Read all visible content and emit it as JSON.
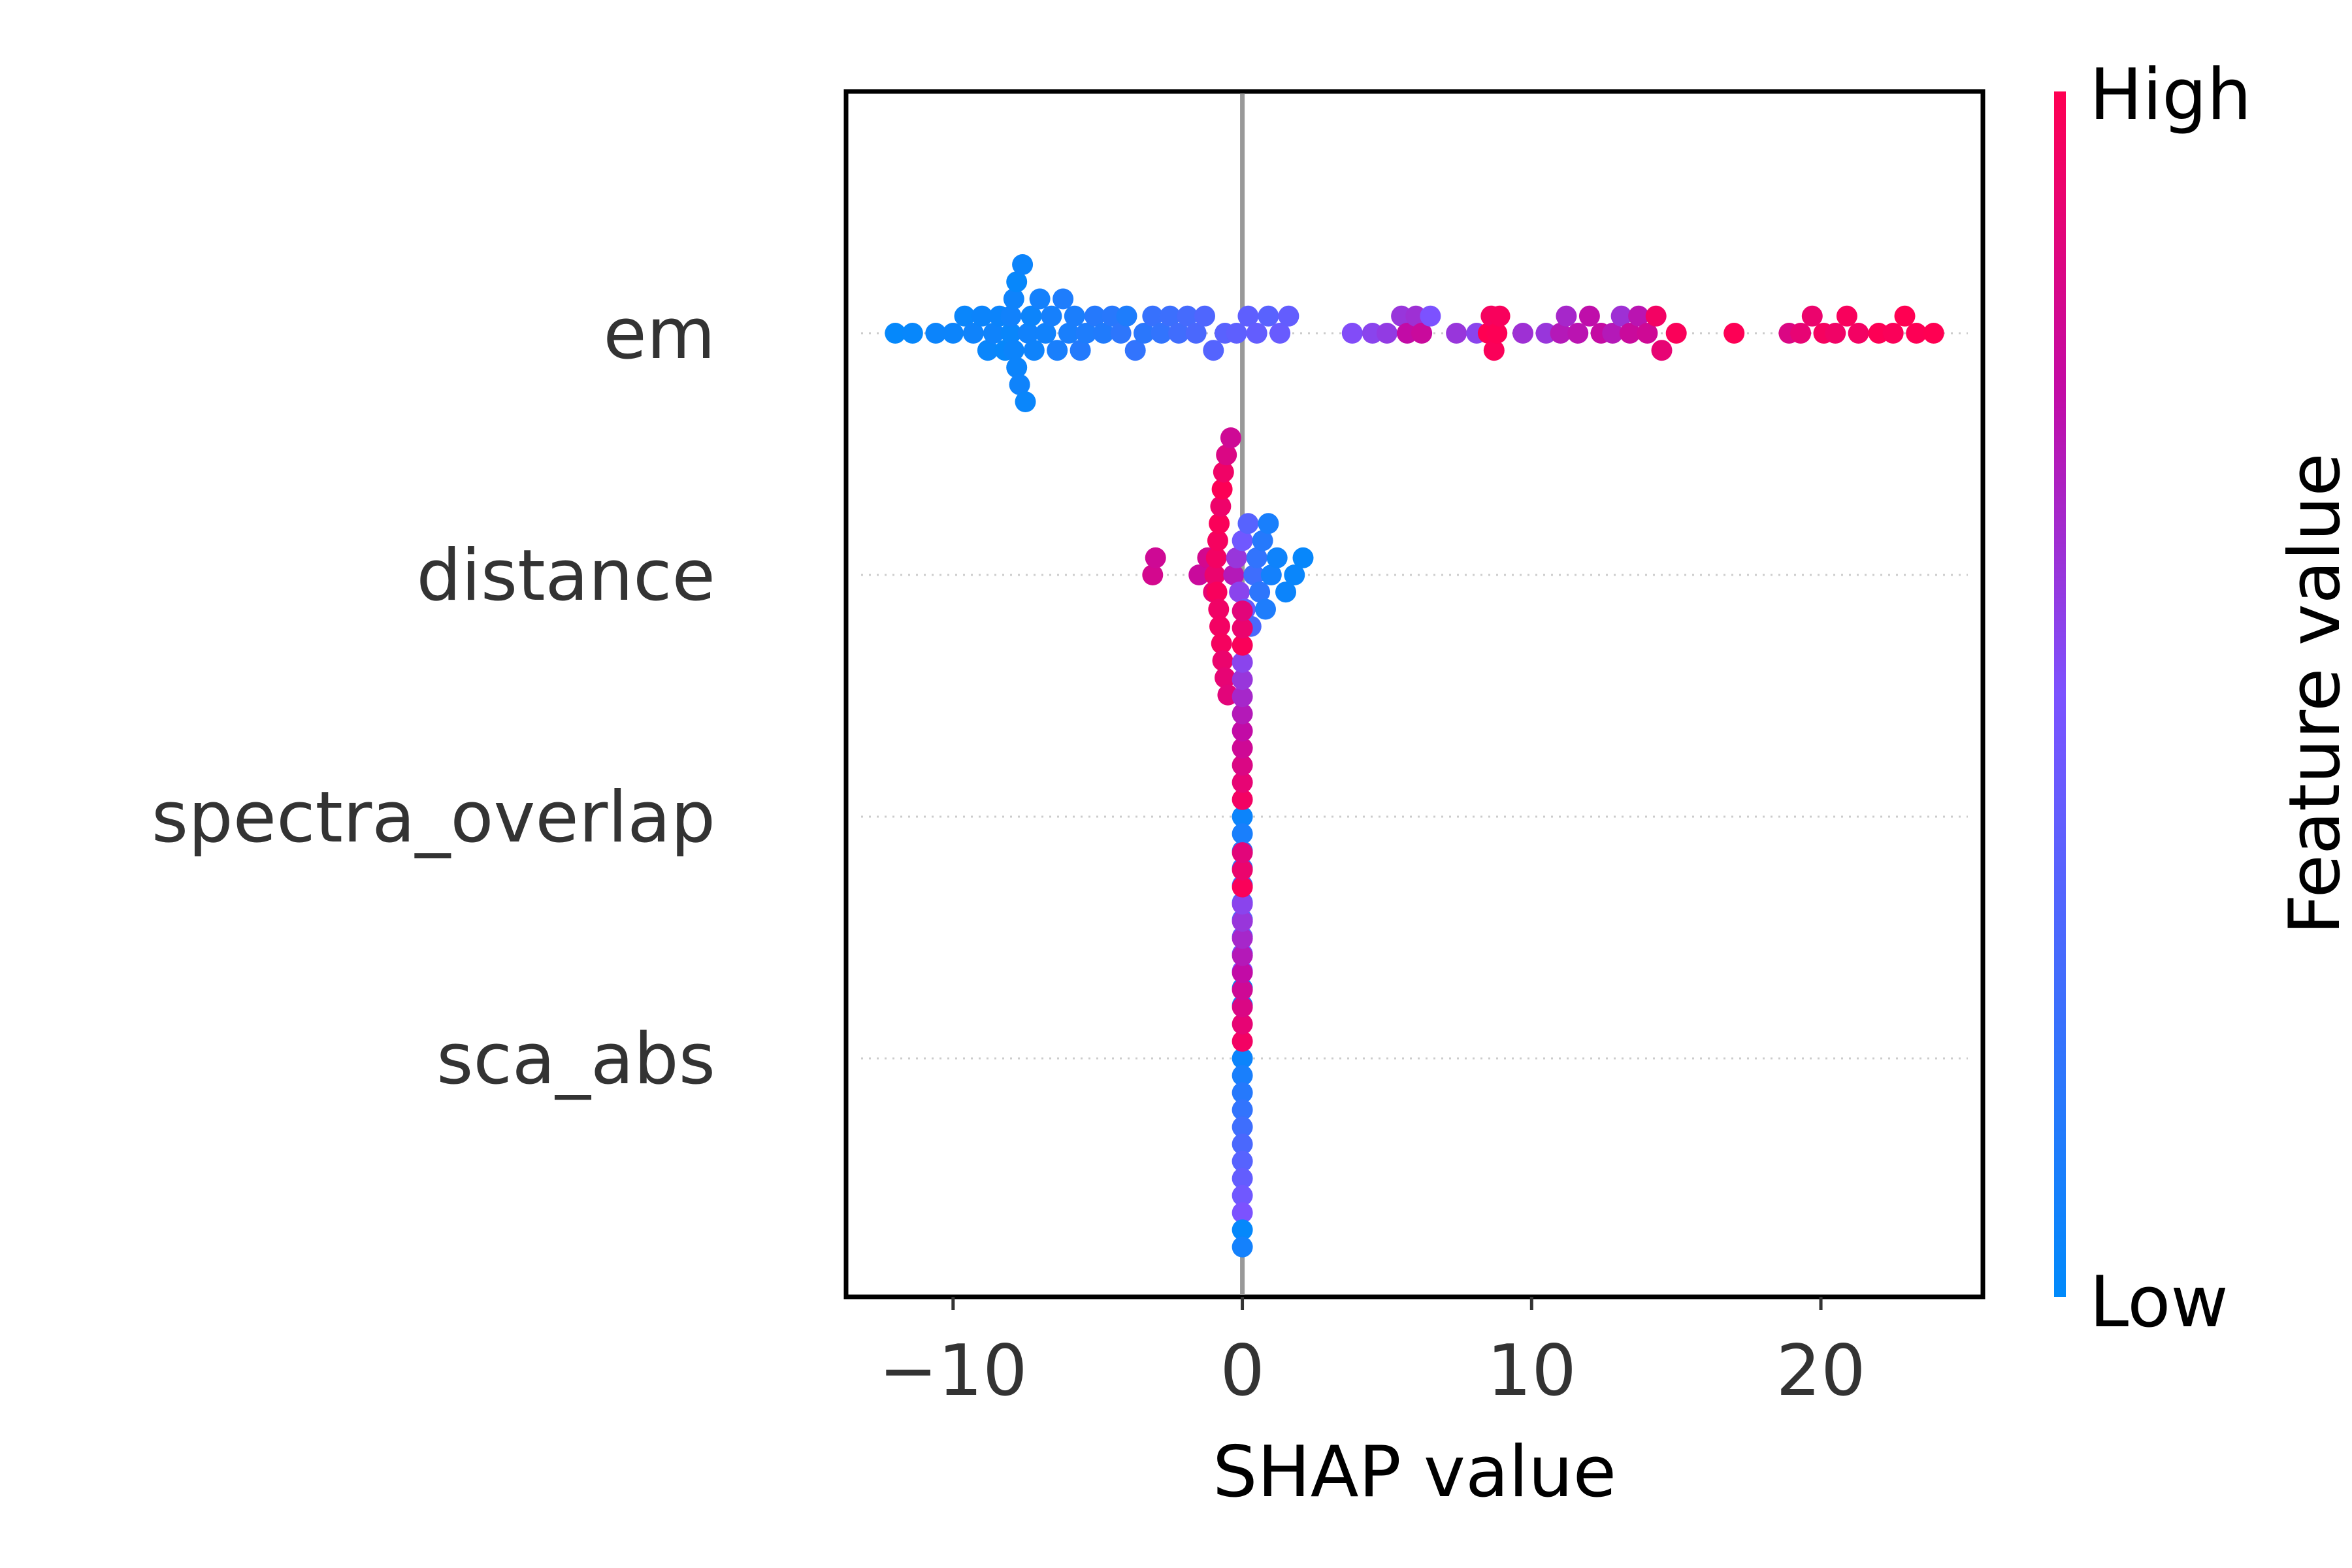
{
  "chart_data": {
    "type": "scatter",
    "subtype": "shap-beeswarm",
    "xlabel": "SHAP value",
    "xlim": [
      -13.7,
      25.6
    ],
    "xticks": [
      -10,
      0,
      10,
      20
    ],
    "xtick_labels": [
      "−10",
      "0",
      "10",
      "20"
    ],
    "grid": false,
    "zero_line": 0,
    "features": [
      "em",
      "distance",
      "spectra_overlap",
      "sca_abs"
    ],
    "colorbar": {
      "label": "Feature value",
      "high_label": "High",
      "low_label": "Low",
      "low_color": "#008afb",
      "high_color": "#ff0052"
    },
    "series": [
      {
        "feature": "em",
        "points": [
          {
            "x": -12.0,
            "v": 0.02
          },
          {
            "x": -11.4,
            "v": 0.03
          },
          {
            "x": -10.6,
            "v": 0.05
          },
          {
            "x": -10.0,
            "v": 0.05
          },
          {
            "x": -9.6,
            "v": 0.04
          },
          {
            "x": -9.3,
            "v": 0.06
          },
          {
            "x": -9.0,
            "v": 0.05
          },
          {
            "x": -8.8,
            "v": 0.04
          },
          {
            "x": -8.6,
            "v": 0.06
          },
          {
            "x": -8.4,
            "v": 0.05
          },
          {
            "x": -8.2,
            "v": 0.03
          },
          {
            "x": -8.0,
            "v": 0.04
          },
          {
            "x": -8.0,
            "v": 0.07
          },
          {
            "x": -7.9,
            "v": 0.05
          },
          {
            "x": -7.9,
            "v": 0.06
          },
          {
            "x": -7.8,
            "v": 0.05
          },
          {
            "x": -7.8,
            "v": 0.03
          },
          {
            "x": -7.7,
            "v": 0.06
          },
          {
            "x": -7.6,
            "v": 0.05
          },
          {
            "x": -7.5,
            "v": 0.04
          },
          {
            "x": -7.4,
            "v": 0.07
          },
          {
            "x": -7.3,
            "v": 0.05
          },
          {
            "x": -7.2,
            "v": 0.06
          },
          {
            "x": -7.0,
            "v": 0.08
          },
          {
            "x": -6.8,
            "v": 0.07
          },
          {
            "x": -6.6,
            "v": 0.09
          },
          {
            "x": -6.4,
            "v": 0.1
          },
          {
            "x": -6.2,
            "v": 0.12
          },
          {
            "x": -6.0,
            "v": 0.1
          },
          {
            "x": -5.8,
            "v": 0.11
          },
          {
            "x": -5.6,
            "v": 0.14
          },
          {
            "x": -5.4,
            "v": 0.12
          },
          {
            "x": -5.1,
            "v": 0.15
          },
          {
            "x": -4.8,
            "v": 0.13
          },
          {
            "x": -4.5,
            "v": 0.16
          },
          {
            "x": -4.2,
            "v": 0.18
          },
          {
            "x": -4.0,
            "v": 0.12
          },
          {
            "x": -3.7,
            "v": 0.2
          },
          {
            "x": -3.4,
            "v": 0.17
          },
          {
            "x": -3.1,
            "v": 0.22
          },
          {
            "x": -2.8,
            "v": 0.2
          },
          {
            "x": -2.5,
            "v": 0.24
          },
          {
            "x": -2.2,
            "v": 0.26
          },
          {
            "x": -1.9,
            "v": 0.28
          },
          {
            "x": -1.6,
            "v": 0.3
          },
          {
            "x": -1.3,
            "v": 0.32
          },
          {
            "x": -1.0,
            "v": 0.34
          },
          {
            "x": -0.6,
            "v": 0.36
          },
          {
            "x": -0.2,
            "v": 0.38
          },
          {
            "x": 0.2,
            "v": 0.38
          },
          {
            "x": 0.5,
            "v": 0.4
          },
          {
            "x": 0.9,
            "v": 0.36
          },
          {
            "x": 1.3,
            "v": 0.42
          },
          {
            "x": 1.6,
            "v": 0.4
          },
          {
            "x": 3.8,
            "v": 0.52
          },
          {
            "x": 4.5,
            "v": 0.55
          },
          {
            "x": 5.0,
            "v": 0.58
          },
          {
            "x": 5.5,
            "v": 0.6
          },
          {
            "x": 5.7,
            "v": 0.75
          },
          {
            "x": 6.0,
            "v": 0.62
          },
          {
            "x": 6.2,
            "v": 0.78
          },
          {
            "x": 6.5,
            "v": 0.5
          },
          {
            "x": 7.4,
            "v": 0.6
          },
          {
            "x": 8.1,
            "v": 0.55
          },
          {
            "x": 8.5,
            "v": 1.0
          },
          {
            "x": 8.6,
            "v": 0.96
          },
          {
            "x": 8.7,
            "v": 0.98
          },
          {
            "x": 8.8,
            "v": 0.99
          },
          {
            "x": 8.9,
            "v": 0.97
          },
          {
            "x": 9.7,
            "v": 0.62
          },
          {
            "x": 10.5,
            "v": 0.6
          },
          {
            "x": 11.0,
            "v": 0.7
          },
          {
            "x": 11.2,
            "v": 0.65
          },
          {
            "x": 11.6,
            "v": 0.72
          },
          {
            "x": 12.0,
            "v": 0.74
          },
          {
            "x": 12.4,
            "v": 0.76
          },
          {
            "x": 12.8,
            "v": 0.7
          },
          {
            "x": 13.1,
            "v": 0.62
          },
          {
            "x": 13.4,
            "v": 0.78
          },
          {
            "x": 13.7,
            "v": 0.72
          },
          {
            "x": 14.0,
            "v": 0.8
          },
          {
            "x": 14.3,
            "v": 0.95
          },
          {
            "x": 14.5,
            "v": 0.9
          },
          {
            "x": 15.0,
            "v": 0.98
          },
          {
            "x": 17.0,
            "v": 0.99
          },
          {
            "x": 18.9,
            "v": 0.85
          },
          {
            "x": 19.3,
            "v": 0.9
          },
          {
            "x": 19.7,
            "v": 0.92
          },
          {
            "x": 20.1,
            "v": 0.96
          },
          {
            "x": 20.5,
            "v": 0.94
          },
          {
            "x": 20.9,
            "v": 0.97
          },
          {
            "x": 21.3,
            "v": 0.95
          },
          {
            "x": 22.0,
            "v": 0.99
          },
          {
            "x": 22.5,
            "v": 0.98
          },
          {
            "x": 22.9,
            "v": 1.0
          },
          {
            "x": 23.3,
            "v": 0.99
          },
          {
            "x": 23.9,
            "v": 1.0
          }
        ]
      },
      {
        "feature": "distance",
        "points": [
          {
            "x": -3.1,
            "v": 0.82
          },
          {
            "x": -3.0,
            "v": 0.8
          },
          {
            "x": -1.5,
            "v": 0.78
          },
          {
            "x": -1.2,
            "v": 0.82
          },
          {
            "x": -1.0,
            "v": 0.9
          },
          {
            "x": -0.95,
            "v": 0.92
          },
          {
            "x": -0.9,
            "v": 0.95
          },
          {
            "x": -0.88,
            "v": 0.97
          },
          {
            "x": -0.85,
            "v": 0.96
          },
          {
            "x": -0.82,
            "v": 0.94
          },
          {
            "x": -0.8,
            "v": 0.98
          },
          {
            "x": -0.78,
            "v": 0.95
          },
          {
            "x": -0.75,
            "v": 0.93
          },
          {
            "x": -0.72,
            "v": 0.96
          },
          {
            "x": -0.7,
            "v": 0.99
          },
          {
            "x": -0.68,
            "v": 0.92
          },
          {
            "x": -0.65,
            "v": 0.94
          },
          {
            "x": -0.6,
            "v": 0.9
          },
          {
            "x": -0.55,
            "v": 0.85
          },
          {
            "x": -0.5,
            "v": 0.88
          },
          {
            "x": -0.4,
            "v": 0.8
          },
          {
            "x": -0.3,
            "v": 0.7
          },
          {
            "x": -0.2,
            "v": 0.6
          },
          {
            "x": -0.1,
            "v": 0.55
          },
          {
            "x": 0.0,
            "v": 0.45
          },
          {
            "x": 0.1,
            "v": 0.4
          },
          {
            "x": 0.2,
            "v": 0.35
          },
          {
            "x": 0.3,
            "v": 0.3
          },
          {
            "x": 0.4,
            "v": 0.25
          },
          {
            "x": 0.5,
            "v": 0.2
          },
          {
            "x": 0.6,
            "v": 0.18
          },
          {
            "x": 0.7,
            "v": 0.15
          },
          {
            "x": 0.8,
            "v": 0.12
          },
          {
            "x": 0.9,
            "v": 0.1
          },
          {
            "x": 1.0,
            "v": 0.08
          },
          {
            "x": 1.2,
            "v": 0.06
          },
          {
            "x": 1.5,
            "v": 0.05
          },
          {
            "x": 1.8,
            "v": 0.04
          },
          {
            "x": 2.1,
            "v": 0.03
          }
        ]
      },
      {
        "feature": "spectra_overlap",
        "points": [
          {
            "x": 0.0,
            "v": 0.05
          },
          {
            "x": 0.0,
            "v": 0.95
          },
          {
            "x": 0.0,
            "v": 0.1
          },
          {
            "x": 0.0,
            "v": 0.9
          },
          {
            "x": 0.0,
            "v": 0.15
          },
          {
            "x": 0.0,
            "v": 0.85
          },
          {
            "x": 0.0,
            "v": 0.2
          },
          {
            "x": 0.0,
            "v": 0.8
          },
          {
            "x": 0.0,
            "v": 0.25
          },
          {
            "x": 0.0,
            "v": 0.75
          },
          {
            "x": 0.0,
            "v": 0.3
          },
          {
            "x": 0.0,
            "v": 0.7
          },
          {
            "x": 0.0,
            "v": 0.35
          },
          {
            "x": 0.0,
            "v": 0.65
          },
          {
            "x": 0.0,
            "v": 0.4
          },
          {
            "x": 0.0,
            "v": 0.6
          },
          {
            "x": 0.0,
            "v": 0.45
          },
          {
            "x": 0.0,
            "v": 0.55
          },
          {
            "x": 0.0,
            "v": 0.5
          },
          {
            "x": 0.0,
            "v": 0.98
          },
          {
            "x": 0.0,
            "v": 0.02
          },
          {
            "x": 0.0,
            "v": 0.92
          },
          {
            "x": 0.0,
            "v": 0.08
          },
          {
            "x": 0.0,
            "v": 0.88
          }
        ]
      },
      {
        "feature": "sca_abs",
        "points": [
          {
            "x": 0.0,
            "v": 0.05
          },
          {
            "x": 0.0,
            "v": 0.95
          },
          {
            "x": 0.0,
            "v": 0.1
          },
          {
            "x": 0.0,
            "v": 0.9
          },
          {
            "x": 0.0,
            "v": 0.15
          },
          {
            "x": 0.0,
            "v": 0.85
          },
          {
            "x": 0.0,
            "v": 0.2
          },
          {
            "x": 0.0,
            "v": 0.8
          },
          {
            "x": 0.0,
            "v": 0.25
          },
          {
            "x": 0.0,
            "v": 0.75
          },
          {
            "x": 0.0,
            "v": 0.3
          },
          {
            "x": 0.0,
            "v": 0.7
          },
          {
            "x": 0.0,
            "v": 0.35
          },
          {
            "x": 0.0,
            "v": 0.65
          },
          {
            "x": 0.0,
            "v": 0.4
          },
          {
            "x": 0.0,
            "v": 0.6
          },
          {
            "x": 0.0,
            "v": 0.45
          },
          {
            "x": 0.0,
            "v": 0.55
          },
          {
            "x": 0.0,
            "v": 0.5
          },
          {
            "x": 0.0,
            "v": 0.98
          },
          {
            "x": 0.0,
            "v": 0.02
          },
          {
            "x": 0.0,
            "v": 0.92
          },
          {
            "x": 0.0,
            "v": 0.08
          },
          {
            "x": 0.0,
            "v": 0.88
          }
        ]
      }
    ]
  }
}
